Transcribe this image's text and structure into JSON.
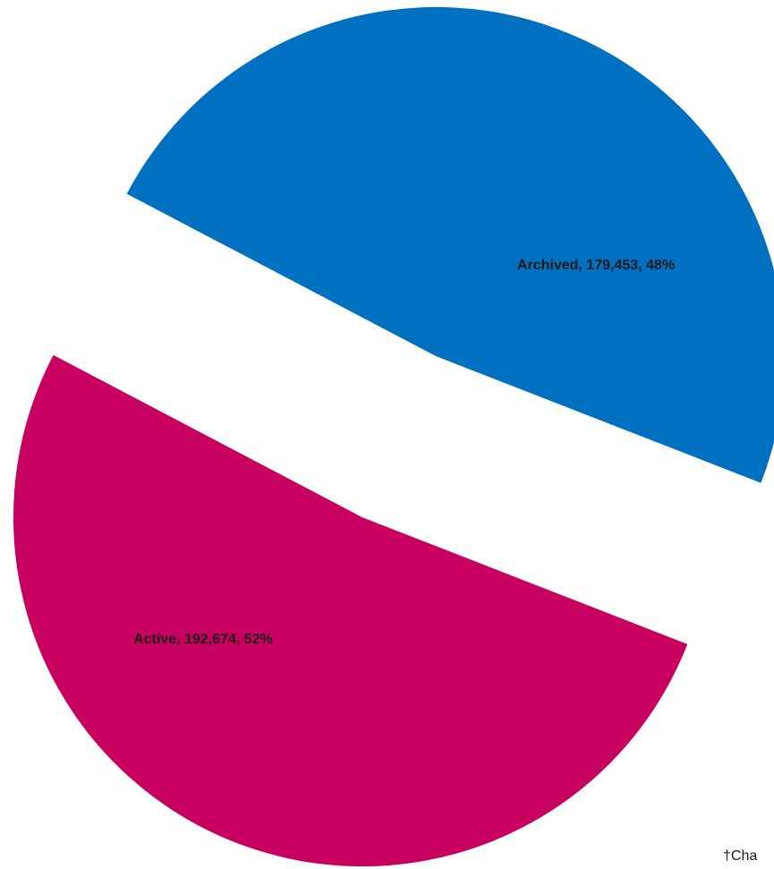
{
  "chart_data": {
    "type": "pie",
    "categories": [
      "Archived",
      "Active"
    ],
    "values": [
      179453,
      192674
    ],
    "value_labels": [
      "Archived, 179,453, 48%",
      "Active, 192,674, 52%"
    ],
    "colors": [
      "#0070c0",
      "#c8005f"
    ],
    "exploded": true,
    "footnote": "†Cha"
  }
}
